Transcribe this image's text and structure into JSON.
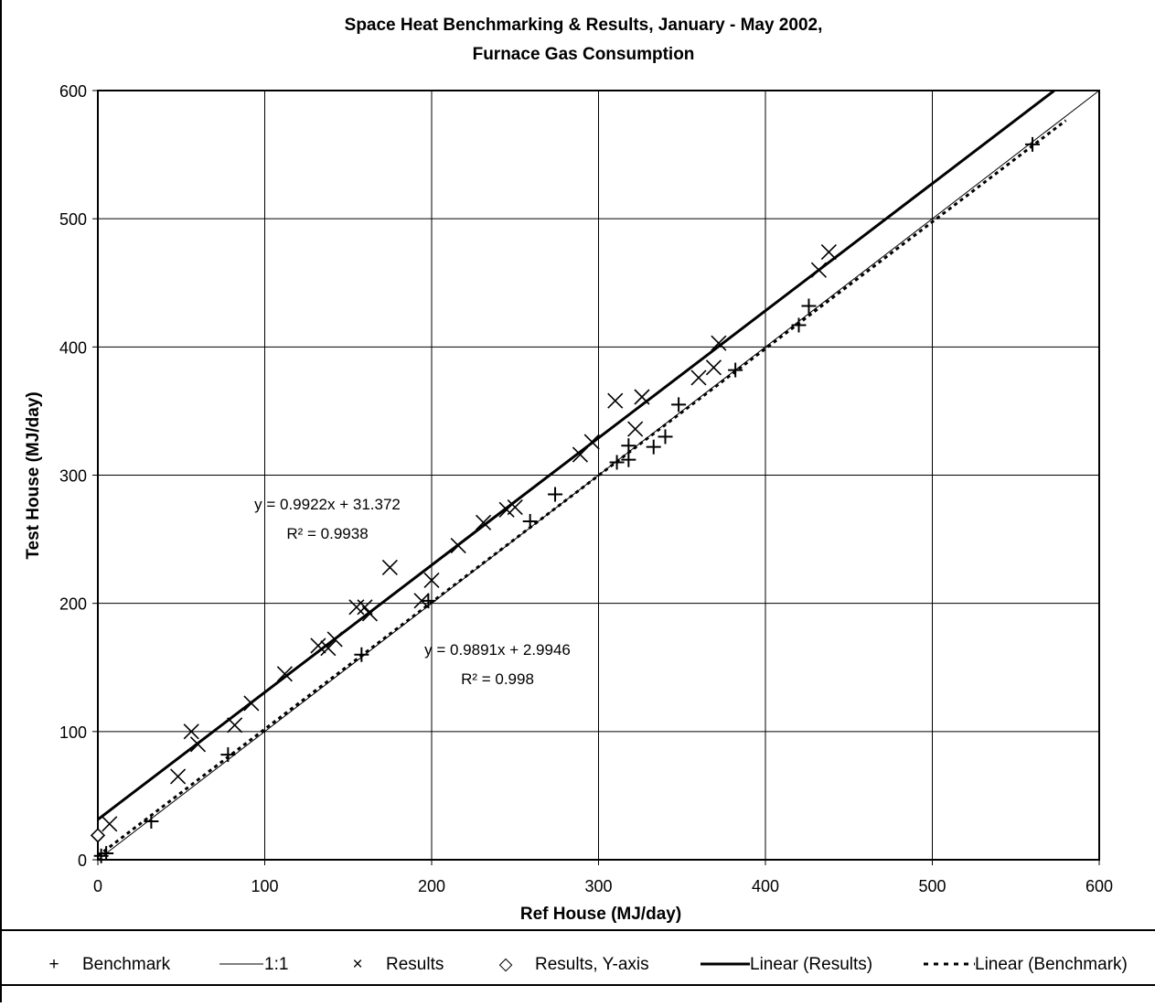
{
  "chart_data": {
    "type": "scatter",
    "title": "Space Heat Benchmarking & Results, January - May 2002,",
    "subtitle": "Furnace Gas Consumption",
    "xlabel": "Ref House (MJ/day)",
    "ylabel": "Test House (MJ/day)",
    "xlim": [
      0,
      600
    ],
    "ylim": [
      0,
      600
    ],
    "xticks": [
      "0",
      "100",
      "200",
      "300",
      "400",
      "500",
      "600"
    ],
    "yticks": [
      "0",
      "100",
      "200",
      "300",
      "400",
      "500",
      "600"
    ],
    "grid": true,
    "legend_position": "bottom",
    "series": [
      {
        "name": "Benchmark",
        "marker": "plus",
        "points": [
          [
            2,
            3
          ],
          [
            5,
            5
          ],
          [
            32,
            30
          ],
          [
            78,
            82
          ],
          [
            158,
            160
          ],
          [
            198,
            202
          ],
          [
            259,
            264
          ],
          [
            274,
            285
          ],
          [
            311,
            310
          ],
          [
            318,
            312
          ],
          [
            318,
            323
          ],
          [
            333,
            322
          ],
          [
            340,
            330
          ],
          [
            348,
            355
          ],
          [
            382,
            382
          ],
          [
            420,
            417
          ],
          [
            426,
            432
          ],
          [
            560,
            558
          ]
        ]
      },
      {
        "name": "1:1",
        "line": "thin-solid",
        "points": [
          [
            0,
            0
          ],
          [
            600,
            600
          ]
        ]
      },
      {
        "name": "Results",
        "marker": "cross",
        "points": [
          [
            7,
            28
          ],
          [
            48,
            65
          ],
          [
            56,
            100
          ],
          [
            60,
            90
          ],
          [
            82,
            105
          ],
          [
            92,
            122
          ],
          [
            112,
            145
          ],
          [
            132,
            167
          ],
          [
            138,
            165
          ],
          [
            142,
            172
          ],
          [
            155,
            197
          ],
          [
            160,
            197
          ],
          [
            163,
            192
          ],
          [
            175,
            228
          ],
          [
            194,
            202
          ],
          [
            200,
            218
          ],
          [
            216,
            245
          ],
          [
            231,
            263
          ],
          [
            245,
            273
          ],
          [
            250,
            275
          ],
          [
            289,
            316
          ],
          [
            296,
            326
          ],
          [
            310,
            358
          ],
          [
            322,
            336
          ],
          [
            326,
            361
          ],
          [
            360,
            376
          ],
          [
            369,
            384
          ],
          [
            372,
            403
          ],
          [
            432,
            460
          ],
          [
            438,
            474
          ]
        ]
      },
      {
        "name": "Results, Y-axis",
        "marker": "diamond",
        "points": [
          [
            0,
            19
          ]
        ]
      },
      {
        "name": "Linear (Results)",
        "line": "thick-solid",
        "slope": 0.9922,
        "intercept": 31.372,
        "x_range": [
          0,
          573
        ]
      },
      {
        "name": "Linear (Benchmark)",
        "line": "dashed",
        "slope": 0.9891,
        "intercept": 2.9946,
        "x_range": [
          0,
          580
        ]
      }
    ],
    "annotations": {
      "results_eq": "y = 0.9922x + 31.372",
      "results_r2": "R² = 0.9938",
      "benchmark_eq": "y = 0.9891x + 2.9946",
      "benchmark_r2": "R² = 0.998"
    }
  },
  "legend": {
    "symbols": {
      "benchmark": "+",
      "results": "×",
      "results_yaxis": "◇"
    },
    "labels": {
      "benchmark": "Benchmark",
      "one_to_one": "1:1",
      "results": "Results",
      "results_yaxis": "Results, Y-axis",
      "linear_results": "Linear (Results)",
      "linear_benchmark": "Linear (Benchmark)"
    }
  },
  "colors": {
    "ink": "#000000",
    "grid": "#000000",
    "background": "#ffffff"
  }
}
